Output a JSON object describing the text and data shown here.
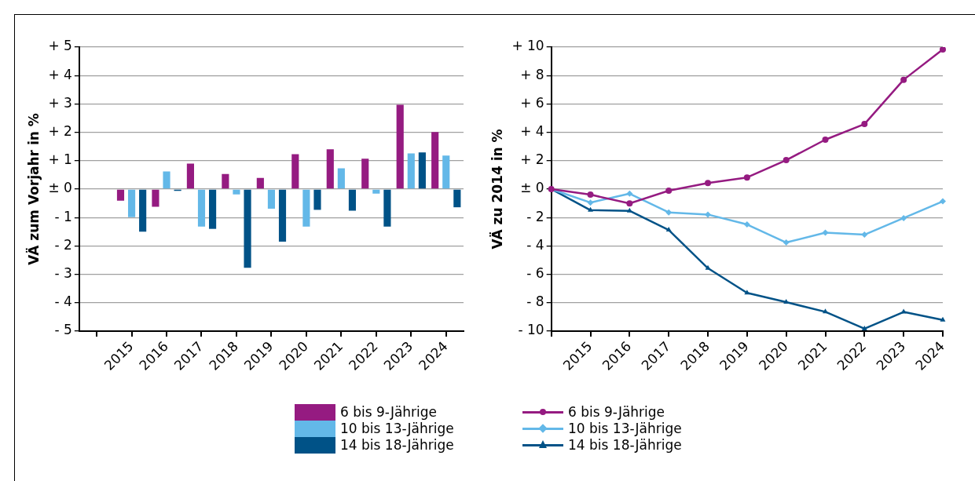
{
  "chart_data": [
    {
      "type": "bar",
      "ylabel": "VÄ zum Vorjahr in %",
      "categories": [
        null,
        "2015",
        "2016",
        "2017",
        "2018",
        "2019",
        "2020",
        "2021",
        "2022",
        "2023",
        "2024"
      ],
      "series": [
        {
          "name": "6 bis 9-Jährige",
          "color": "#951b81",
          "values": [
            null,
            -0.41,
            -0.62,
            0.9,
            0.53,
            0.39,
            1.23,
            1.4,
            1.07,
            2.97,
            2.01
          ]
        },
        {
          "name": "10 bis 13-Jährige",
          "color": "#63b8e8",
          "values": [
            null,
            -0.99,
            0.62,
            -1.32,
            -0.19,
            -0.69,
            -1.32,
            0.73,
            -0.16,
            1.26,
            1.18
          ]
        },
        {
          "name": "14 bis 18-Jährige",
          "color": "#005287",
          "values": [
            null,
            -1.5,
            -0.06,
            -1.4,
            -2.77,
            -1.85,
            -0.73,
            -0.76,
            -1.32,
            1.29,
            -0.64
          ]
        }
      ],
      "ylim": [
        -5,
        5
      ],
      "yticks": [
        {
          "value": -5,
          "label": "- 5"
        },
        {
          "value": -4,
          "label": "- 4"
        },
        {
          "value": -3,
          "label": "- 3"
        },
        {
          "value": -2,
          "label": "- 2"
        },
        {
          "value": -1,
          "label": "- 1"
        },
        {
          "value": 0,
          "label": "± 0"
        },
        {
          "value": 1,
          "label": "+ 1"
        },
        {
          "value": 2,
          "label": "+ 2"
        },
        {
          "value": 3,
          "label": "+ 3"
        },
        {
          "value": 4,
          "label": "+ 4"
        },
        {
          "value": 5,
          "label": "+ 5"
        }
      ],
      "grid": "y",
      "legend": "bottom"
    },
    {
      "type": "line",
      "ylabel": "VÄ zu 2014 in %",
      "categories": [
        null,
        "2015",
        "2016",
        "2017",
        "2018",
        "2019",
        "2020",
        "2021",
        "2022",
        "2023",
        "2024"
      ],
      "series": [
        {
          "name": "6 bis 9-Jährige",
          "color": "#951b81",
          "marker": "circle",
          "values": [
            0,
            -0.39,
            -1.01,
            -0.11,
            0.43,
            0.82,
            2.04,
            3.48,
            4.58,
            7.7,
            9.83
          ]
        },
        {
          "name": "10 bis 13-Jährige",
          "color": "#63b8e8",
          "marker": "diamond",
          "values": [
            0,
            -0.95,
            -0.32,
            -1.64,
            -1.79,
            -2.49,
            -3.76,
            -3.07,
            -3.21,
            -2.04,
            -0.86
          ]
        },
        {
          "name": "14 bis 18-Jährige",
          "color": "#005287",
          "marker": "triangle",
          "values": [
            0,
            -1.48,
            -1.53,
            -2.88,
            -5.57,
            -7.31,
            -7.96,
            -8.64,
            -9.83,
            -8.65,
            -9.21
          ]
        }
      ],
      "ylim": [
        -10,
        10
      ],
      "yticks": [
        {
          "value": -10,
          "label": "- 10"
        },
        {
          "value": -8,
          "label": "- 8"
        },
        {
          "value": -6,
          "label": "- 6"
        },
        {
          "value": -4,
          "label": "- 4"
        },
        {
          "value": -2,
          "label": "- 2"
        },
        {
          "value": 0,
          "label": "± 0"
        },
        {
          "value": 2,
          "label": "+ 2"
        },
        {
          "value": 4,
          "label": "+ 4"
        },
        {
          "value": 6,
          "label": "+ 6"
        },
        {
          "value": 8,
          "label": "+ 8"
        },
        {
          "value": 10,
          "label": "+ 10"
        }
      ],
      "grid": "y",
      "legend": "bottom"
    }
  ]
}
